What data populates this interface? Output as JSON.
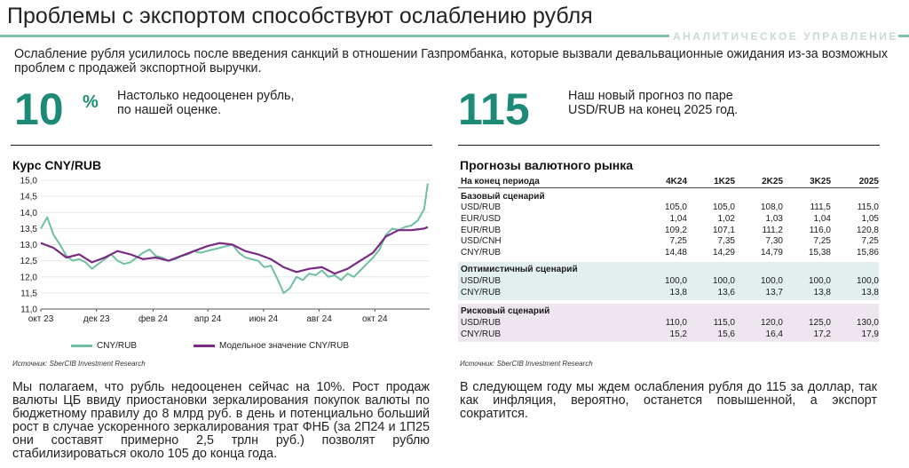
{
  "header": {
    "title": "Проблемы с экспортом способствуют ослаблению рубля",
    "department": "АНАЛИТИЧЕСКОЕ УПРАВЛЕНИЕ",
    "lead": "Ослабление рубля усилилось после введения санкций в отношении Газпромбанка, которые вызвали девальвационные ожидания из-за возможных проблем с продажей экспортной выручки."
  },
  "highlights": [
    {
      "number": "10",
      "unit": "%",
      "text_line1": "Настолько недооценен рубль,",
      "text_line2": "по нашей оценке."
    },
    {
      "number": "115",
      "unit": "",
      "text_line1": "Наш новый прогноз по паре",
      "text_line2": "USD/RUB на конец 2025 год."
    }
  ],
  "colors": {
    "accent": "#1c8a76",
    "series1": "#6fbfa4",
    "series2": "#7a2a83",
    "opt_bg": "#e3efee",
    "risk_bg": "#ede6ee"
  },
  "chart_section": {
    "title": "Курс CNY/RUB",
    "source": "Источник: SberCIB Investment Research"
  },
  "chart_data": {
    "type": "line",
    "title": "Курс CNY/RUB",
    "ylim": [
      11.0,
      15.0
    ],
    "yticks": [
      "15,0",
      "14,5",
      "14,0",
      "13,5",
      "13,0",
      "12,5",
      "12,0",
      "11,5",
      "11,0"
    ],
    "xticks": [
      "окт 23",
      "дек 23",
      "фев 24",
      "апр 24",
      "июн 24",
      "авг 24",
      "окт 24"
    ],
    "x_month_start": [
      "2023-10",
      "2023-12",
      "2024-02",
      "2024-04",
      "2024-06",
      "2024-08",
      "2024-10"
    ],
    "grid": "horizontal",
    "legend_position": "bottom",
    "series": [
      {
        "name": "CNY/RUB",
        "color": "#6fbfa4",
        "x": [
          "2023-10-01",
          "2023-10-08",
          "2023-10-15",
          "2023-10-22",
          "2023-10-29",
          "2023-11-05",
          "2023-11-12",
          "2023-11-19",
          "2023-11-26",
          "2023-12-03",
          "2023-12-10",
          "2023-12-17",
          "2023-12-24",
          "2023-12-31",
          "2024-01-07",
          "2024-01-14",
          "2024-01-21",
          "2024-01-28",
          "2024-02-04",
          "2024-02-11",
          "2024-02-18",
          "2024-02-25",
          "2024-03-03",
          "2024-03-10",
          "2024-03-17",
          "2024-03-24",
          "2024-03-31",
          "2024-04-07",
          "2024-04-14",
          "2024-04-21",
          "2024-04-28",
          "2024-05-05",
          "2024-05-12",
          "2024-05-19",
          "2024-05-26",
          "2024-06-02",
          "2024-06-09",
          "2024-06-16",
          "2024-06-23",
          "2024-06-30",
          "2024-07-07",
          "2024-07-14",
          "2024-07-21",
          "2024-07-28",
          "2024-08-04",
          "2024-08-11",
          "2024-08-18",
          "2024-08-25",
          "2024-09-01",
          "2024-09-08",
          "2024-09-15",
          "2024-09-22",
          "2024-09-29",
          "2024-10-06",
          "2024-10-13",
          "2024-10-20",
          "2024-10-27",
          "2024-11-03",
          "2024-11-10",
          "2024-11-17",
          "2024-11-24",
          "2024-11-28"
        ],
        "y": [
          13.5,
          13.85,
          13.3,
          13.0,
          12.65,
          12.5,
          12.55,
          12.45,
          12.25,
          12.4,
          12.55,
          12.7,
          12.5,
          12.4,
          12.45,
          12.6,
          12.75,
          12.85,
          12.65,
          12.6,
          12.5,
          12.55,
          12.65,
          12.7,
          12.8,
          12.75,
          12.8,
          12.85,
          12.9,
          12.95,
          13.0,
          12.75,
          12.6,
          12.55,
          12.5,
          12.3,
          12.35,
          11.95,
          11.5,
          11.65,
          12.0,
          11.9,
          12.1,
          12.05,
          12.2,
          12.0,
          12.05,
          11.9,
          12.1,
          12.0,
          12.2,
          12.4,
          12.6,
          12.85,
          13.3,
          13.5,
          13.45,
          13.55,
          13.6,
          13.75,
          14.1,
          14.9
        ]
      },
      {
        "name": "Модельное значение CNY/RUB",
        "color": "#7a2a83",
        "x": [
          "2023-10-01",
          "2023-10-15",
          "2023-10-29",
          "2023-11-12",
          "2023-11-26",
          "2023-12-10",
          "2023-12-24",
          "2024-01-07",
          "2024-01-21",
          "2024-02-04",
          "2024-02-18",
          "2024-03-03",
          "2024-03-17",
          "2024-03-31",
          "2024-04-14",
          "2024-04-28",
          "2024-05-12",
          "2024-05-26",
          "2024-06-09",
          "2024-06-23",
          "2024-07-07",
          "2024-07-21",
          "2024-08-04",
          "2024-08-18",
          "2024-09-01",
          "2024-09-15",
          "2024-09-29",
          "2024-10-13",
          "2024-10-27",
          "2024-11-10",
          "2024-11-24",
          "2024-11-28"
        ],
        "y": [
          13.05,
          12.9,
          12.6,
          12.7,
          12.45,
          12.6,
          12.8,
          12.7,
          12.55,
          12.6,
          12.5,
          12.65,
          12.8,
          12.95,
          13.05,
          13.0,
          12.8,
          12.7,
          12.55,
          12.3,
          12.15,
          12.25,
          12.3,
          12.1,
          12.25,
          12.5,
          12.75,
          13.25,
          13.45,
          13.45,
          13.5,
          13.55
        ]
      }
    ]
  },
  "forecast_section": {
    "title": "Прогнозы валютного рынка",
    "source": "Источник: SberCIB Investment Research",
    "header_label": "На конец периода",
    "columns": [
      "4K24",
      "1K25",
      "2K25",
      "3K25",
      "2025"
    ],
    "scenarios": [
      {
        "title": "Базовый сценарий",
        "rows": [
          {
            "label": "USD/RUB",
            "values": [
              "105,0",
              "105,0",
              "108,0",
              "111,5",
              "115,0"
            ]
          },
          {
            "label": "EUR/USD",
            "values": [
              "1,04",
              "1,02",
              "1,03",
              "1,04",
              "1,05"
            ]
          },
          {
            "label": "EUR/RUB",
            "values": [
              "109,2",
              "107,1",
              "111,2",
              "116,0",
              "120,8"
            ]
          },
          {
            "label": "USD/CNH",
            "values": [
              "7,25",
              "7,35",
              "7,30",
              "7,25",
              "7,25"
            ]
          },
          {
            "label": "CNY/RUB",
            "values": [
              "14,48",
              "14,29",
              "14,79",
              "15,38",
              "15,86"
            ]
          }
        ]
      },
      {
        "title": "Оптимистичный сценарий",
        "rows": [
          {
            "label": "USD/RUB",
            "values": [
              "100,0",
              "100,0",
              "100,0",
              "100,0",
              "100,0"
            ]
          },
          {
            "label": "CNY/RUB",
            "values": [
              "13,8",
              "13,6",
              "13,7",
              "13,8",
              "13,8"
            ]
          }
        ]
      },
      {
        "title": "Рисковый сценарий",
        "rows": [
          {
            "label": "USD/RUB",
            "values": [
              "110,0",
              "115,0",
              "120,0",
              "125,0",
              "130,0"
            ]
          },
          {
            "label": "CNY/RUB",
            "values": [
              "15,2",
              "15,6",
              "16,4",
              "17,2",
              "17,9"
            ]
          }
        ]
      }
    ]
  },
  "bottom": {
    "left": "Мы полагаем, что рубль недооценен сейчас на 10%. Рост продаж валюты ЦБ ввиду приостановки зеркалирования покупок валюты по бюджетному правилу до 8 млрд руб. в день и потенциально больший рост в случае ускоренного зеркалирования трат ФНБ (за 2П24 и 1П25 они составят примерно 2,5 трлн руб.) позволят рублю стабилизироваться около 105 до конца года.",
    "right": "В следующем году мы ждем ослабления рубля до 115 за доллар, так как инфляция, вероятно, останется повышенной, а экспорт сократится."
  }
}
